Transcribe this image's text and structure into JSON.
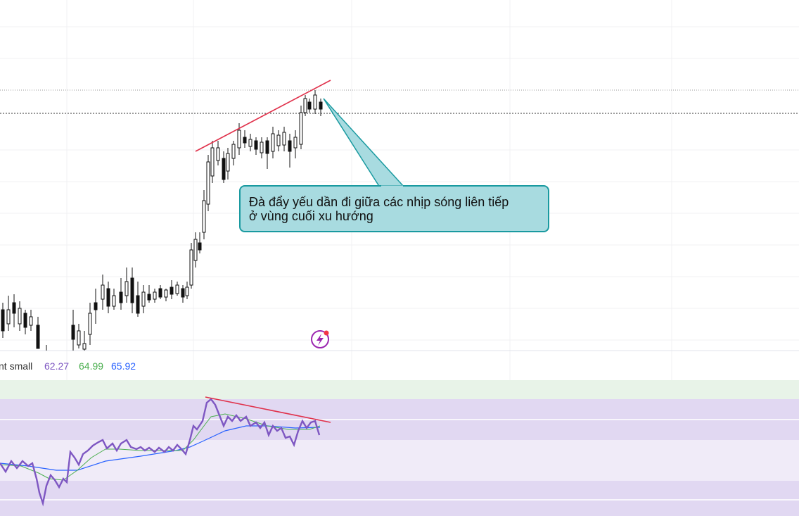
{
  "annotation": {
    "lines": [
      "Đà đẩy yếu dần đi giữa các nhịp sóng liên tiếp",
      "ở vùng cuối xu hướng"
    ]
  },
  "indicator": {
    "name": "nt small",
    "values": [
      62.27,
      64.99,
      65.92
    ],
    "colors": [
      "#7e57c2",
      "#4caf50",
      "#2962ff"
    ]
  }
}
